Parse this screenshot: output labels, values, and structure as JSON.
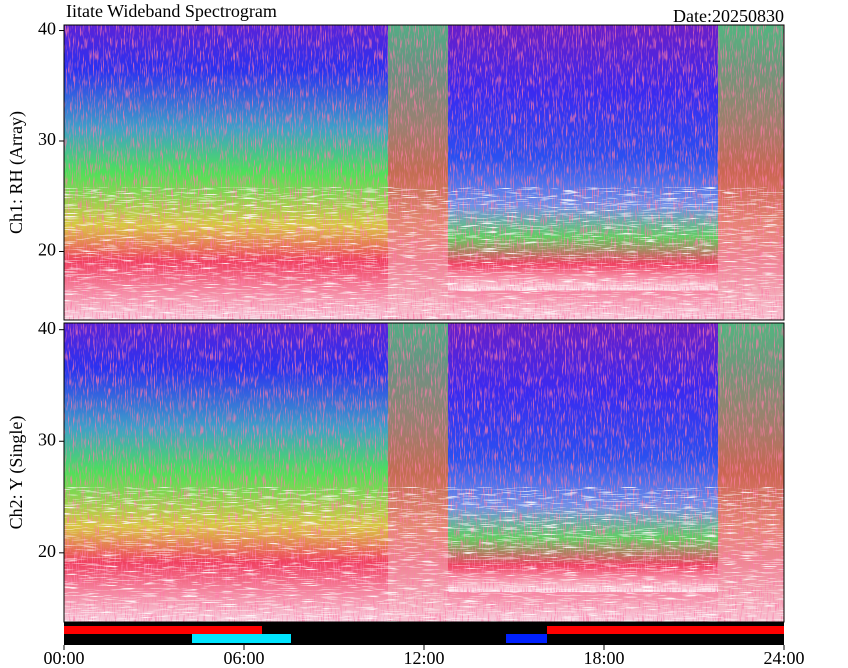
{
  "chart_data": [
    {
      "type": "spectrogram",
      "title": "Iitate Wideband Spectrogram",
      "subtitle": "Date:20250830",
      "ylabel": "Ch1: RH (Array)",
      "ylim": [
        13.8,
        40.5
      ],
      "yticks": [
        20,
        30,
        40
      ]
    },
    {
      "type": "spectrogram",
      "ylabel": "Ch2: Y (Single)",
      "ylim": [
        13.8,
        40.6
      ],
      "yticks": [
        20,
        30,
        40
      ],
      "xlim": [
        0,
        24
      ],
      "xticks": [
        {
          "value": 0,
          "label": "00:00"
        },
        {
          "value": 6,
          "label": "06:00"
        },
        {
          "value": 12,
          "label": "12:00"
        },
        {
          "value": 18,
          "label": "18:00"
        },
        {
          "value": 24,
          "label": "24:00"
        }
      ]
    }
  ]
}
